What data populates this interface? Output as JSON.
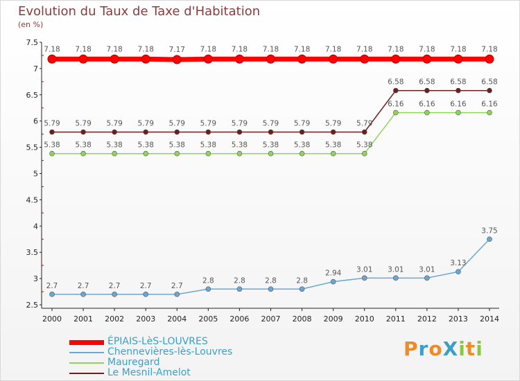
{
  "title": "Evolution du Taux de Taxe d'Habitation",
  "subtitle": "(en %)",
  "brand": {
    "text": "ProXiti",
    "letters": [
      "P",
      "r",
      "o",
      "X",
      "i",
      "t",
      "i"
    ],
    "colors": [
      "#f08a24",
      "#3aa0c8",
      "#f08a24",
      "#3aa0c8",
      "#8cc63f",
      "#f08a24",
      "#8cc63f"
    ]
  },
  "chart_data": {
    "type": "line",
    "x": [
      "2000",
      "2001",
      "2002",
      "2003",
      "2004",
      "2005",
      "2006",
      "2007",
      "2008",
      "2009",
      "2010",
      "2011",
      "2012",
      "2013",
      "2014"
    ],
    "ylim": [
      2.5,
      7.5
    ],
    "yticks": [
      "2.5",
      "3",
      "3.5",
      "4",
      "4.5",
      "5",
      "5.5",
      "6",
      "6.5",
      "7",
      "7.5"
    ],
    "grid": false,
    "legend_position": "bottom-left",
    "series": [
      {
        "name": "ÉPIAIS-LèS-LOUVRES",
        "color": "#ff0000",
        "values": [
          7.18,
          7.18,
          7.18,
          7.18,
          7.17,
          7.18,
          7.18,
          7.18,
          7.18,
          7.18,
          7.18,
          7.18,
          7.18,
          7.18,
          7.18
        ],
        "labels": [
          "7.18",
          "7.18",
          "7.18",
          "7.18",
          "7.17",
          "7.18",
          "7.18",
          "7.18",
          "7.18",
          "7.18",
          "7.18",
          "7.18",
          "7.18",
          "7.18",
          "7.18"
        ]
      },
      {
        "name": "Chennevières-lès-Louvres",
        "color": "#6aa6d6",
        "values": [
          2.7,
          2.7,
          2.7,
          2.7,
          2.7,
          2.8,
          2.8,
          2.8,
          2.8,
          2.94,
          3.01,
          3.01,
          3.01,
          3.13,
          3.75
        ],
        "labels": [
          "2.7",
          "2.7",
          "2.7",
          "2.7",
          "2.7",
          "2.8",
          "2.8",
          "2.8",
          "2.8",
          "2.94",
          "3.01",
          "3.01",
          "3.01",
          "3.13",
          "3.75"
        ]
      },
      {
        "name": "Mauregard",
        "color": "#8fd35a",
        "values": [
          5.38,
          5.38,
          5.38,
          5.38,
          5.38,
          5.38,
          5.38,
          5.38,
          5.38,
          5.38,
          5.38,
          6.16,
          6.16,
          6.16,
          6.16
        ],
        "labels": [
          "5.38",
          "5.38",
          "5.38",
          "5.38",
          "5.38",
          "5.38",
          "5.38",
          "5.38",
          "5.38",
          "5.38",
          "5.38",
          "6.16",
          "6.16",
          "6.16",
          "6.16"
        ]
      },
      {
        "name": "Le Mesnil-Amelot",
        "color": "#6b1f1f",
        "values": [
          5.79,
          5.79,
          5.79,
          5.79,
          5.79,
          5.79,
          5.79,
          5.79,
          5.79,
          5.79,
          5.79,
          6.58,
          6.58,
          6.58,
          6.58
        ],
        "labels": [
          "5.79",
          "5.79",
          "5.79",
          "5.79",
          "5.79",
          "5.79",
          "5.79",
          "5.79",
          "5.79",
          "5.79",
          "5.79",
          "6.58",
          "6.58",
          "6.58",
          "6.58"
        ]
      }
    ]
  }
}
